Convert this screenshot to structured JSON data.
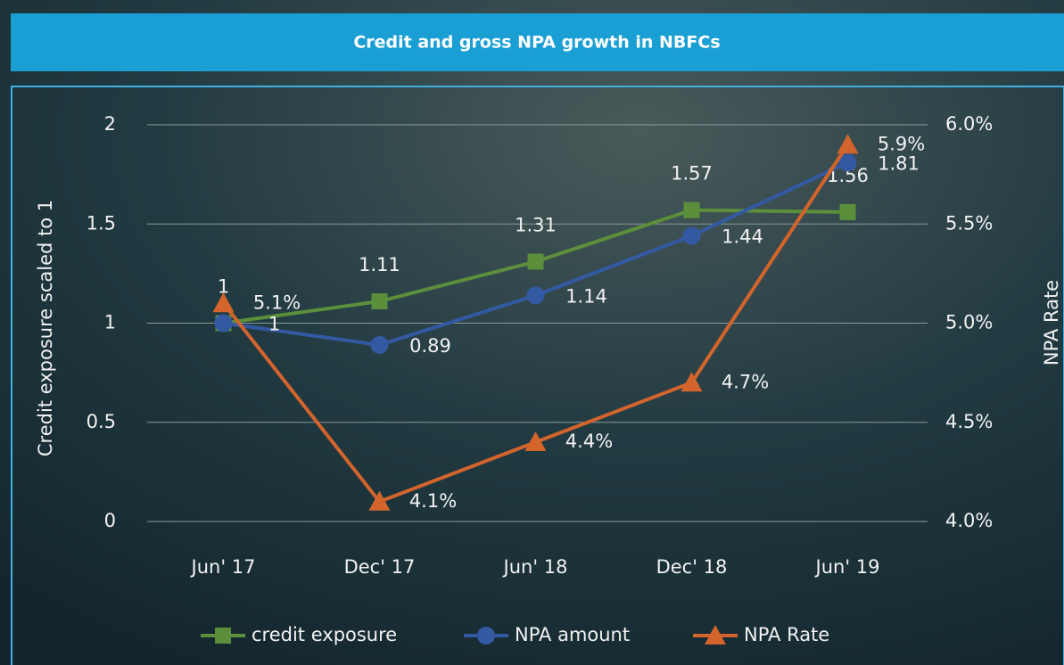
{
  "chart_data": {
    "type": "line",
    "title": "Credit and gross NPA growth in NBFCs",
    "y_label": "Credit exposure scaled to 1",
    "y2_label": "NPA Rate",
    "categories": [
      "Jun' 17",
      "Dec' 17",
      "Jun' 18",
      "Dec' 18",
      "Jun' 19"
    ],
    "ylim": [
      0,
      2
    ],
    "yticks": [
      0,
      0.5,
      1,
      1.5,
      2
    ],
    "y2lim": [
      4,
      6
    ],
    "y2ticks": [
      {
        "value": 4,
        "label": "4.0%"
      },
      {
        "value": 4.5,
        "label": "4.5%"
      },
      {
        "value": 5,
        "label": "5.0%"
      },
      {
        "value": 5.5,
        "label": "5.5%"
      },
      {
        "value": 6,
        "label": "6.0%"
      }
    ],
    "grid": true,
    "legend": "bottom",
    "series": [
      {
        "name": "credit exposure",
        "color": "#5b8f3b",
        "marker": "square",
        "values": [
          1,
          1.11,
          1.31,
          1.57,
          1.56
        ]
      },
      {
        "name": "NPA amount",
        "color": "#3459a3",
        "marker": "circle",
        "values": [
          1,
          0.89,
          1.14,
          1.44,
          1.81
        ]
      },
      {
        "name": "NPA Rate",
        "color": "#d2642c",
        "marker": "triangle",
        "axis": "y2",
        "values": [
          5.1,
          4.1,
          4.4,
          4.7,
          5.9
        ],
        "value_labels": [
          "5.1%",
          "4.1%",
          "4.4%",
          "4.7%",
          "5.9%"
        ]
      }
    ]
  }
}
